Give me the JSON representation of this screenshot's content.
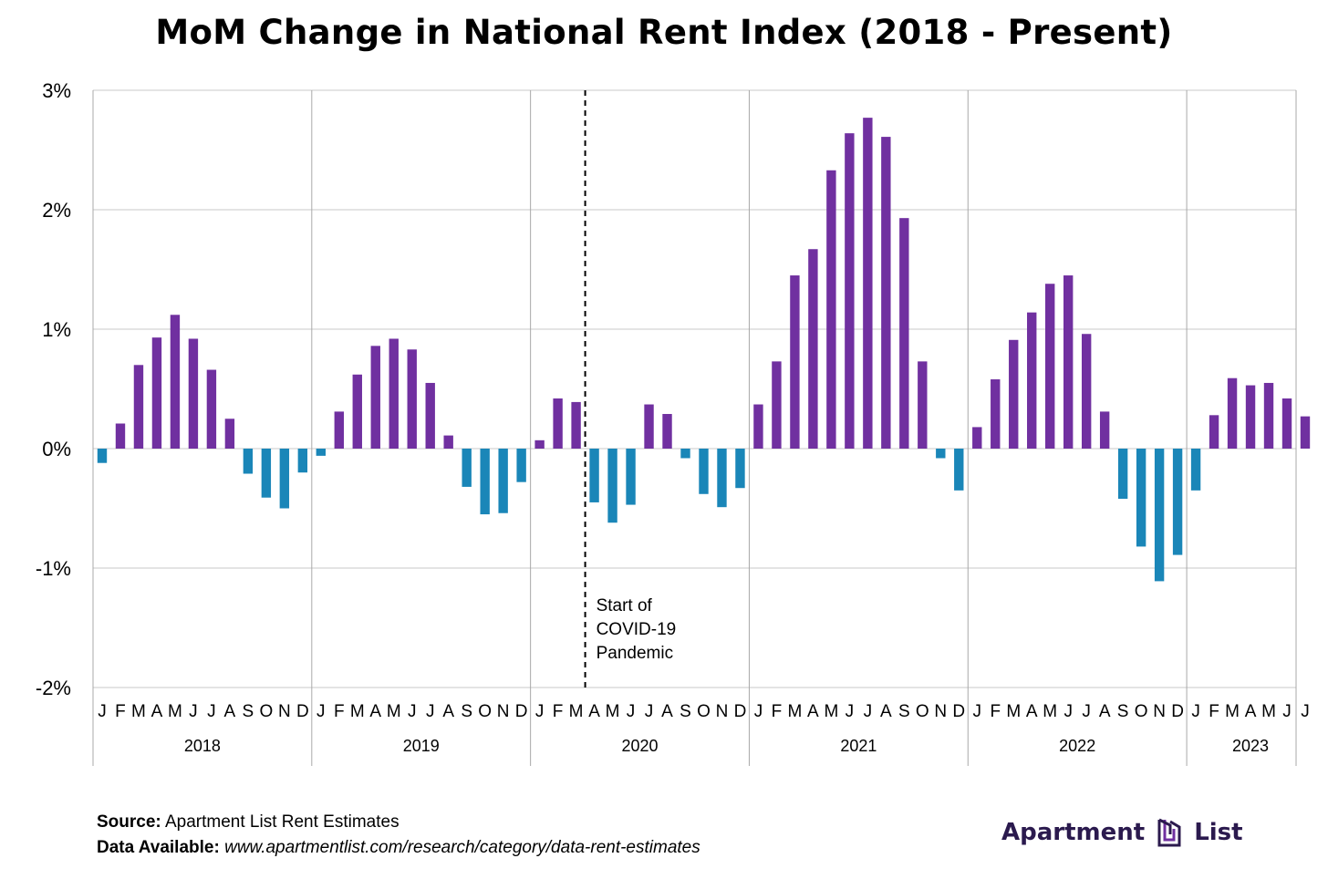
{
  "title": "MoM Change in National Rent Index (2018 - Present)",
  "chart_data": {
    "type": "bar",
    "title": "MoM Change in National Rent Index (2018 - Present)",
    "xlabel": "",
    "ylabel": "",
    "ylim": [
      -2,
      3
    ],
    "yticks": [
      {
        "value": 3,
        "label": "3%"
      },
      {
        "value": 2,
        "label": "2%"
      },
      {
        "value": 1,
        "label": "1%"
      },
      {
        "value": 0,
        "label": "0%"
      },
      {
        "value": -1,
        "label": "-1%"
      },
      {
        "value": -2,
        "label": "-2%"
      }
    ],
    "grid": true,
    "positive_color": "#7030a0",
    "negative_color": "#1a86b8",
    "years": [
      {
        "label": "2018",
        "months": [
          "J",
          "F",
          "M",
          "A",
          "M",
          "J",
          "J",
          "A",
          "S",
          "O",
          "N",
          "D"
        ],
        "values": [
          -0.12,
          0.21,
          0.7,
          0.93,
          1.12,
          0.92,
          0.66,
          0.25,
          -0.21,
          -0.41,
          -0.5,
          -0.2
        ]
      },
      {
        "label": "2019",
        "months": [
          "J",
          "F",
          "M",
          "A",
          "M",
          "J",
          "J",
          "A",
          "S",
          "O",
          "N",
          "D"
        ],
        "values": [
          -0.06,
          0.31,
          0.62,
          0.86,
          0.92,
          0.83,
          0.55,
          0.11,
          -0.32,
          -0.55,
          -0.54,
          -0.28
        ]
      },
      {
        "label": "2020",
        "months": [
          "J",
          "F",
          "M",
          "A",
          "M",
          "J",
          "J",
          "A",
          "S",
          "O",
          "N",
          "D"
        ],
        "values": [
          0.07,
          0.42,
          0.39,
          -0.45,
          -0.62,
          -0.47,
          0.37,
          0.29,
          -0.08,
          -0.38,
          -0.49,
          -0.33
        ]
      },
      {
        "label": "2021",
        "months": [
          "J",
          "F",
          "M",
          "A",
          "M",
          "J",
          "J",
          "A",
          "S",
          "O",
          "N",
          "D"
        ],
        "values": [
          0.37,
          0.73,
          1.45,
          1.67,
          2.33,
          2.64,
          2.77,
          2.61,
          1.93,
          0.73,
          -0.08,
          -0.35
        ]
      },
      {
        "label": "2022",
        "months": [
          "J",
          "F",
          "M",
          "A",
          "M",
          "J",
          "J",
          "A",
          "S",
          "O",
          "N",
          "D"
        ],
        "values": [
          0.18,
          0.58,
          0.91,
          1.14,
          1.38,
          1.45,
          0.96,
          0.31,
          -0.42,
          -0.82,
          -1.11,
          -0.89
        ]
      },
      {
        "label": "2023",
        "months": [
          "J",
          "F",
          "M",
          "A",
          "M",
          "J",
          "J"
        ],
        "values": [
          -0.35,
          0.28,
          0.59,
          0.53,
          0.55,
          0.42,
          0.27
        ]
      }
    ],
    "annotations": [
      {
        "text_lines": [
          "Start of",
          "COVID-19",
          "Pandemic"
        ],
        "position": "between Mar and Apr 2020, dashed vertical line"
      }
    ]
  },
  "footer": {
    "source_label": "Source:",
    "source_text": "Apartment List Rent Estimates",
    "data_label": "Data Available:",
    "data_url": "www.apartmentlist.com/research/category/data-rent-estimates"
  },
  "brand": {
    "word1": "Apartment",
    "word2": "List",
    "color": "#2b1a4e",
    "logo_icon": "building-icon"
  }
}
